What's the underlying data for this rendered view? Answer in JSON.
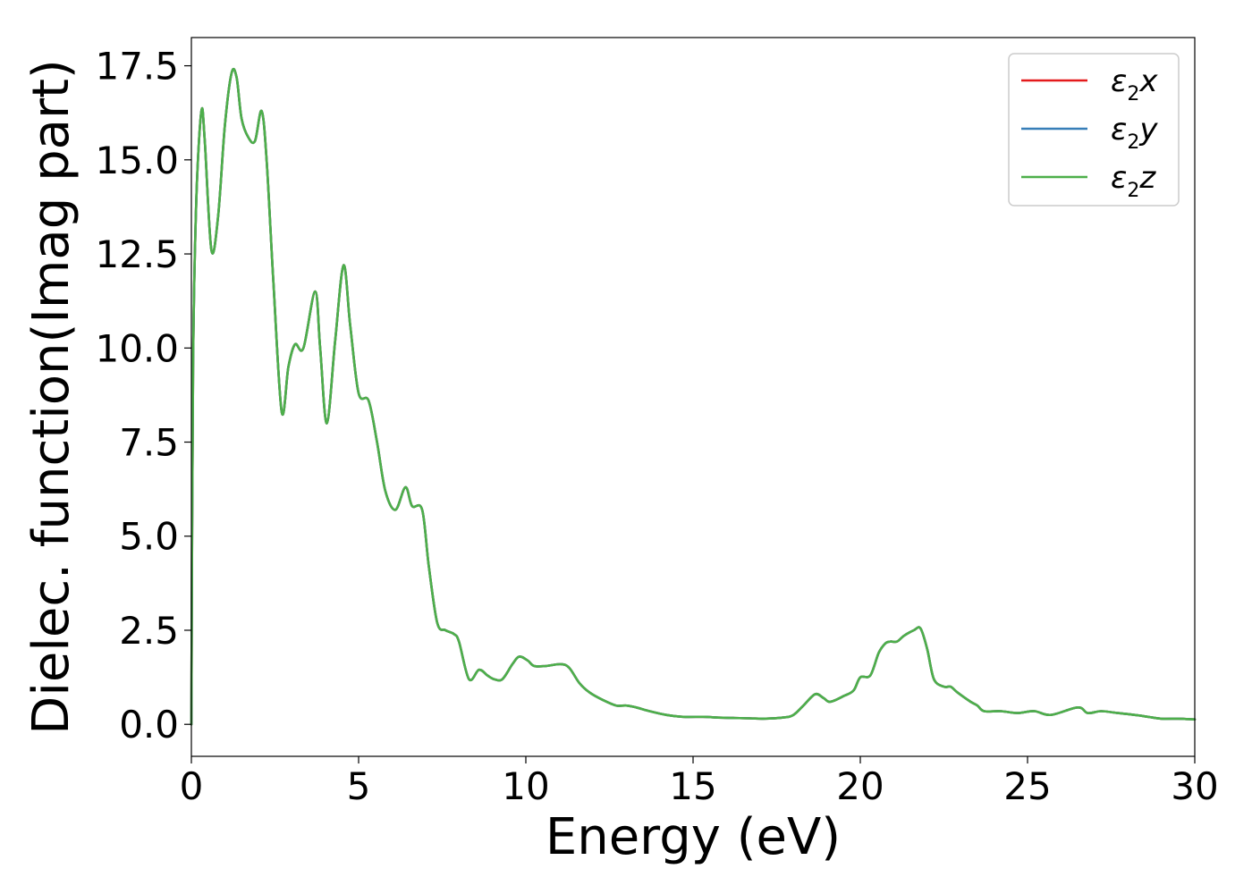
{
  "chart_data": {
    "type": "line",
    "title": "",
    "xlabel": "Energy (eV)",
    "ylabel": "Dielec. function(Imag part)",
    "xlim": [
      0,
      30
    ],
    "ylim": [
      -0.85,
      18.25
    ],
    "xticks": [
      0,
      5,
      10,
      15,
      20,
      25,
      30
    ],
    "xtick_labels": [
      "0",
      "5",
      "10",
      "15",
      "20",
      "25",
      "30"
    ],
    "yticks": [
      0,
      2.5,
      5,
      7.5,
      10,
      12.5,
      15,
      17.5
    ],
    "ytick_labels": [
      "0.0",
      "2.5",
      "5.0",
      "7.5",
      "10.0",
      "12.5",
      "15.0",
      "17.5"
    ],
    "grid": false,
    "legend_position": "top-right",
    "series": [
      {
        "name": "x",
        "color": "#e41a1c",
        "x": [
          0,
          0.05,
          0.15,
          0.3,
          0.4,
          0.6,
          0.8,
          1.0,
          1.2,
          1.35,
          1.5,
          1.7,
          1.9,
          2.1,
          2.25,
          2.45,
          2.7,
          2.9,
          3.1,
          3.35,
          3.7,
          3.85,
          4.05,
          4.3,
          4.55,
          4.75,
          5.0,
          5.3,
          5.55,
          5.8,
          6.1,
          6.4,
          6.6,
          6.9,
          7.1,
          7.35,
          7.6,
          7.85,
          8.0,
          8.3,
          8.6,
          8.85,
          9.05,
          9.3,
          9.6,
          9.8,
          10.05,
          10.25,
          10.6,
          11.05,
          11.3,
          11.6,
          11.9,
          12.3,
          12.7,
          13.0,
          13.3,
          13.7,
          14.2,
          14.7,
          15.3,
          15.7,
          16.2,
          16.7,
          17.1,
          17.7,
          18.0,
          18.3,
          18.65,
          18.9,
          19.1,
          19.5,
          19.8,
          20.0,
          20.3,
          20.55,
          20.75,
          20.9,
          21.1,
          21.3,
          21.6,
          21.8,
          22.0,
          22.2,
          22.5,
          22.7,
          22.9,
          23.3,
          23.5,
          23.7,
          24.2,
          24.7,
          25.2,
          25.7,
          26.5,
          26.8,
          27.2,
          27.7,
          28.2,
          28.6,
          29.0,
          29.5,
          30.0
        ],
        "values": [
          0.0,
          9.5,
          14.0,
          16.3,
          15.5,
          12.6,
          13.5,
          15.9,
          17.3,
          17.2,
          16.1,
          15.6,
          15.5,
          16.3,
          15.0,
          11.8,
          8.3,
          9.5,
          10.1,
          10.0,
          11.5,
          10.0,
          8.0,
          10.2,
          12.2,
          10.6,
          8.8,
          8.6,
          7.5,
          6.2,
          5.7,
          6.3,
          5.8,
          5.7,
          4.2,
          2.7,
          2.5,
          2.4,
          2.2,
          1.2,
          1.45,
          1.3,
          1.2,
          1.2,
          1.6,
          1.8,
          1.7,
          1.55,
          1.55,
          1.6,
          1.5,
          1.1,
          0.85,
          0.65,
          0.5,
          0.5,
          0.45,
          0.35,
          0.25,
          0.2,
          0.2,
          0.18,
          0.17,
          0.16,
          0.15,
          0.18,
          0.25,
          0.5,
          0.8,
          0.7,
          0.6,
          0.75,
          0.9,
          1.25,
          1.3,
          1.9,
          2.15,
          2.2,
          2.2,
          2.35,
          2.5,
          2.55,
          2.0,
          1.2,
          1.0,
          1.0,
          0.85,
          0.6,
          0.5,
          0.35,
          0.35,
          0.3,
          0.35,
          0.25,
          0.45,
          0.3,
          0.35,
          0.3,
          0.25,
          0.2,
          0.15,
          0.15,
          0.13
        ]
      },
      {
        "name": "y",
        "color": "#377eb8",
        "x": [
          0,
          0.05,
          0.15,
          0.3,
          0.4,
          0.6,
          0.8,
          1.0,
          1.2,
          1.35,
          1.5,
          1.7,
          1.9,
          2.1,
          2.25,
          2.45,
          2.7,
          2.9,
          3.1,
          3.35,
          3.7,
          3.85,
          4.05,
          4.3,
          4.55,
          4.75,
          5.0,
          5.3,
          5.55,
          5.8,
          6.1,
          6.4,
          6.6,
          6.9,
          7.1,
          7.35,
          7.6,
          7.85,
          8.0,
          8.3,
          8.6,
          8.85,
          9.05,
          9.3,
          9.6,
          9.8,
          10.05,
          10.25,
          10.6,
          11.05,
          11.3,
          11.6,
          11.9,
          12.3,
          12.7,
          13.0,
          13.3,
          13.7,
          14.2,
          14.7,
          15.3,
          15.7,
          16.2,
          16.7,
          17.1,
          17.7,
          18.0,
          18.3,
          18.65,
          18.9,
          19.1,
          19.5,
          19.8,
          20.0,
          20.3,
          20.55,
          20.75,
          20.9,
          21.1,
          21.3,
          21.6,
          21.8,
          22.0,
          22.2,
          22.5,
          22.7,
          22.9,
          23.3,
          23.5,
          23.7,
          24.2,
          24.7,
          25.2,
          25.7,
          26.5,
          26.8,
          27.2,
          27.7,
          28.2,
          28.6,
          29.0,
          29.5,
          30.0
        ],
        "values": [
          0.0,
          9.5,
          14.0,
          16.3,
          15.5,
          12.6,
          13.5,
          15.9,
          17.3,
          17.2,
          16.1,
          15.6,
          15.5,
          16.3,
          15.0,
          11.8,
          8.3,
          9.5,
          10.1,
          10.0,
          11.5,
          10.0,
          8.0,
          10.2,
          12.2,
          10.6,
          8.8,
          8.6,
          7.5,
          6.2,
          5.7,
          6.3,
          5.8,
          5.7,
          4.2,
          2.7,
          2.5,
          2.4,
          2.2,
          1.2,
          1.45,
          1.3,
          1.2,
          1.2,
          1.6,
          1.8,
          1.7,
          1.55,
          1.55,
          1.6,
          1.5,
          1.1,
          0.85,
          0.65,
          0.5,
          0.5,
          0.45,
          0.35,
          0.25,
          0.2,
          0.2,
          0.18,
          0.17,
          0.16,
          0.15,
          0.18,
          0.25,
          0.5,
          0.8,
          0.7,
          0.6,
          0.75,
          0.9,
          1.25,
          1.3,
          1.9,
          2.15,
          2.2,
          2.2,
          2.35,
          2.5,
          2.55,
          2.0,
          1.2,
          1.0,
          1.0,
          0.85,
          0.6,
          0.5,
          0.35,
          0.35,
          0.3,
          0.35,
          0.25,
          0.45,
          0.3,
          0.35,
          0.3,
          0.25,
          0.2,
          0.15,
          0.15,
          0.13
        ]
      },
      {
        "name": "z",
        "color": "#4daf4a",
        "x": [
          0,
          0.05,
          0.15,
          0.3,
          0.4,
          0.6,
          0.8,
          1.0,
          1.2,
          1.35,
          1.5,
          1.7,
          1.9,
          2.1,
          2.25,
          2.45,
          2.7,
          2.9,
          3.1,
          3.35,
          3.7,
          3.85,
          4.05,
          4.3,
          4.55,
          4.75,
          5.0,
          5.3,
          5.55,
          5.8,
          6.1,
          6.4,
          6.6,
          6.9,
          7.1,
          7.35,
          7.6,
          7.85,
          8.0,
          8.3,
          8.6,
          8.85,
          9.05,
          9.3,
          9.6,
          9.8,
          10.05,
          10.25,
          10.6,
          11.05,
          11.3,
          11.6,
          11.9,
          12.3,
          12.7,
          13.0,
          13.3,
          13.7,
          14.2,
          14.7,
          15.3,
          15.7,
          16.2,
          16.7,
          17.1,
          17.7,
          18.0,
          18.3,
          18.65,
          18.9,
          19.1,
          19.5,
          19.8,
          20.0,
          20.3,
          20.55,
          20.75,
          20.9,
          21.1,
          21.3,
          21.6,
          21.8,
          22.0,
          22.2,
          22.5,
          22.7,
          22.9,
          23.3,
          23.5,
          23.7,
          24.2,
          24.7,
          25.2,
          25.7,
          26.5,
          26.8,
          27.2,
          27.7,
          28.2,
          28.6,
          29.0,
          29.5,
          30.0
        ],
        "values": [
          0.0,
          9.5,
          14.0,
          16.3,
          15.5,
          12.6,
          13.5,
          15.9,
          17.3,
          17.2,
          16.1,
          15.6,
          15.5,
          16.3,
          15.0,
          11.8,
          8.3,
          9.5,
          10.1,
          10.0,
          11.5,
          10.0,
          8.0,
          10.2,
          12.2,
          10.6,
          8.8,
          8.6,
          7.5,
          6.2,
          5.7,
          6.3,
          5.8,
          5.7,
          4.2,
          2.7,
          2.5,
          2.4,
          2.2,
          1.2,
          1.45,
          1.3,
          1.2,
          1.2,
          1.6,
          1.8,
          1.7,
          1.55,
          1.55,
          1.6,
          1.5,
          1.1,
          0.85,
          0.65,
          0.5,
          0.5,
          0.45,
          0.35,
          0.25,
          0.2,
          0.2,
          0.18,
          0.17,
          0.16,
          0.15,
          0.18,
          0.25,
          0.5,
          0.8,
          0.7,
          0.6,
          0.75,
          0.9,
          1.25,
          1.3,
          1.9,
          2.15,
          2.2,
          2.2,
          2.35,
          2.5,
          2.55,
          2.0,
          1.2,
          1.0,
          1.0,
          0.85,
          0.6,
          0.5,
          0.35,
          0.35,
          0.3,
          0.35,
          0.25,
          0.45,
          0.3,
          0.35,
          0.3,
          0.25,
          0.2,
          0.15,
          0.15,
          0.13
        ]
      }
    ],
    "legend": [
      {
        "symbol": "ε",
        "sub": "2",
        "suffix": "x",
        "color": "#e41a1c"
      },
      {
        "symbol": "ε",
        "sub": "2",
        "suffix": "y",
        "color": "#377eb8"
      },
      {
        "symbol": "ε",
        "sub": "2",
        "suffix": "z",
        "color": "#4daf4a"
      }
    ]
  }
}
